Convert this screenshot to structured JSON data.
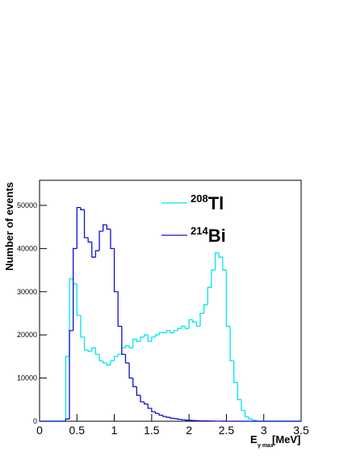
{
  "chart_data": {
    "type": "histogram",
    "ylabel": "Number of events",
    "xlabel": [
      "E",
      "γ max",
      "[MeV]"
    ],
    "bins": [
      0,
      0.05,
      0.1,
      0.15,
      0.2,
      0.25,
      0.3,
      0.35,
      0.4,
      0.45,
      0.5,
      0.55,
      0.6,
      0.65,
      0.7,
      0.75,
      0.8,
      0.85,
      0.9,
      0.95,
      1,
      1.05,
      1.1,
      1.15,
      1.2,
      1.25,
      1.3,
      1.35,
      1.4,
      1.45,
      1.5,
      1.55,
      1.6,
      1.65,
      1.7,
      1.75,
      1.8,
      1.85,
      1.9,
      1.95,
      2,
      2.05,
      2.1,
      2.15,
      2.2,
      2.25,
      2.3,
      2.35,
      2.4,
      2.45,
      2.5,
      2.55,
      2.6,
      2.65,
      2.7,
      2.75,
      2.8,
      2.85,
      2.9,
      2.95,
      3,
      3.05,
      3.1,
      3.15,
      3.2,
      3.25,
      3.3,
      3.35,
      3.4,
      3.45,
      3.5
    ],
    "series": [
      {
        "name": "208Tl",
        "color": "#00e5ee",
        "values": [
          0,
          0,
          0,
          0,
          0,
          0,
          0,
          15000,
          33000,
          31800,
          24500,
          19500,
          16500,
          16200,
          17000,
          15500,
          14000,
          13500,
          13000,
          14000,
          15000,
          15500,
          17000,
          17500,
          17000,
          19000,
          18500,
          19500,
          20000,
          18500,
          19500,
          20000,
          20500,
          20500,
          21000,
          20500,
          21000,
          21500,
          22000,
          21500,
          23500,
          23000,
          22000,
          25000,
          27000,
          31000,
          35000,
          39000,
          38000,
          35000,
          22000,
          14000,
          9000,
          5000,
          2500,
          1000,
          500,
          200,
          0,
          0,
          0,
          0,
          0,
          0,
          0,
          0,
          0,
          0,
          0,
          0
        ]
      },
      {
        "name": "214Bi",
        "color": "#1010c8",
        "values": [
          0,
          0,
          0,
          0,
          0,
          0,
          0,
          500,
          21000,
          40000,
          49500,
          49000,
          42500,
          41500,
          38000,
          39500,
          44000,
          45500,
          44500,
          40000,
          30000,
          22000,
          15500,
          13500,
          10000,
          8000,
          6000,
          4500,
          4000,
          3000,
          2200,
          1800,
          1400,
          1100,
          900,
          700,
          600,
          450,
          350,
          250,
          200,
          150,
          120,
          100,
          80,
          60,
          40,
          30,
          20,
          10,
          0,
          0,
          0,
          0,
          0,
          0,
          0,
          0,
          0,
          0,
          0,
          0,
          0,
          0,
          0,
          0,
          0,
          0,
          0,
          0
        ]
      }
    ],
    "xlim": [
      0,
      3.5
    ],
    "xticks": [
      0,
      0.5,
      1,
      1.5,
      2,
      2.5,
      3,
      3.5
    ],
    "ylim": [
      0,
      55800
    ],
    "yticks": [
      0,
      10000,
      20000,
      30000,
      40000,
      50000
    ],
    "legend": "upper center"
  }
}
